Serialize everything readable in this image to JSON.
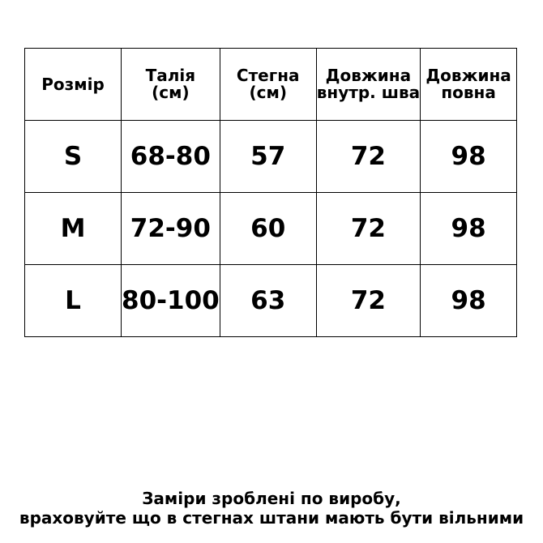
{
  "table": {
    "header": [
      [
        "Розмір"
      ],
      [
        "Талія",
        "(см)"
      ],
      [
        "Стегна",
        "(см)"
      ],
      [
        "Довжина",
        "внутр. шва"
      ],
      [
        "Довжина",
        "повна"
      ]
    ],
    "rows": [
      [
        "S",
        "68-80",
        57,
        72,
        98
      ],
      [
        "M",
        "72-90",
        60,
        72,
        98
      ],
      [
        "L",
        "80-100",
        63,
        72,
        98
      ]
    ]
  },
  "note": [
    "Заміри зроблені по виробу,",
    "враховуйте що в стегнах штани мають бути вільними"
  ]
}
